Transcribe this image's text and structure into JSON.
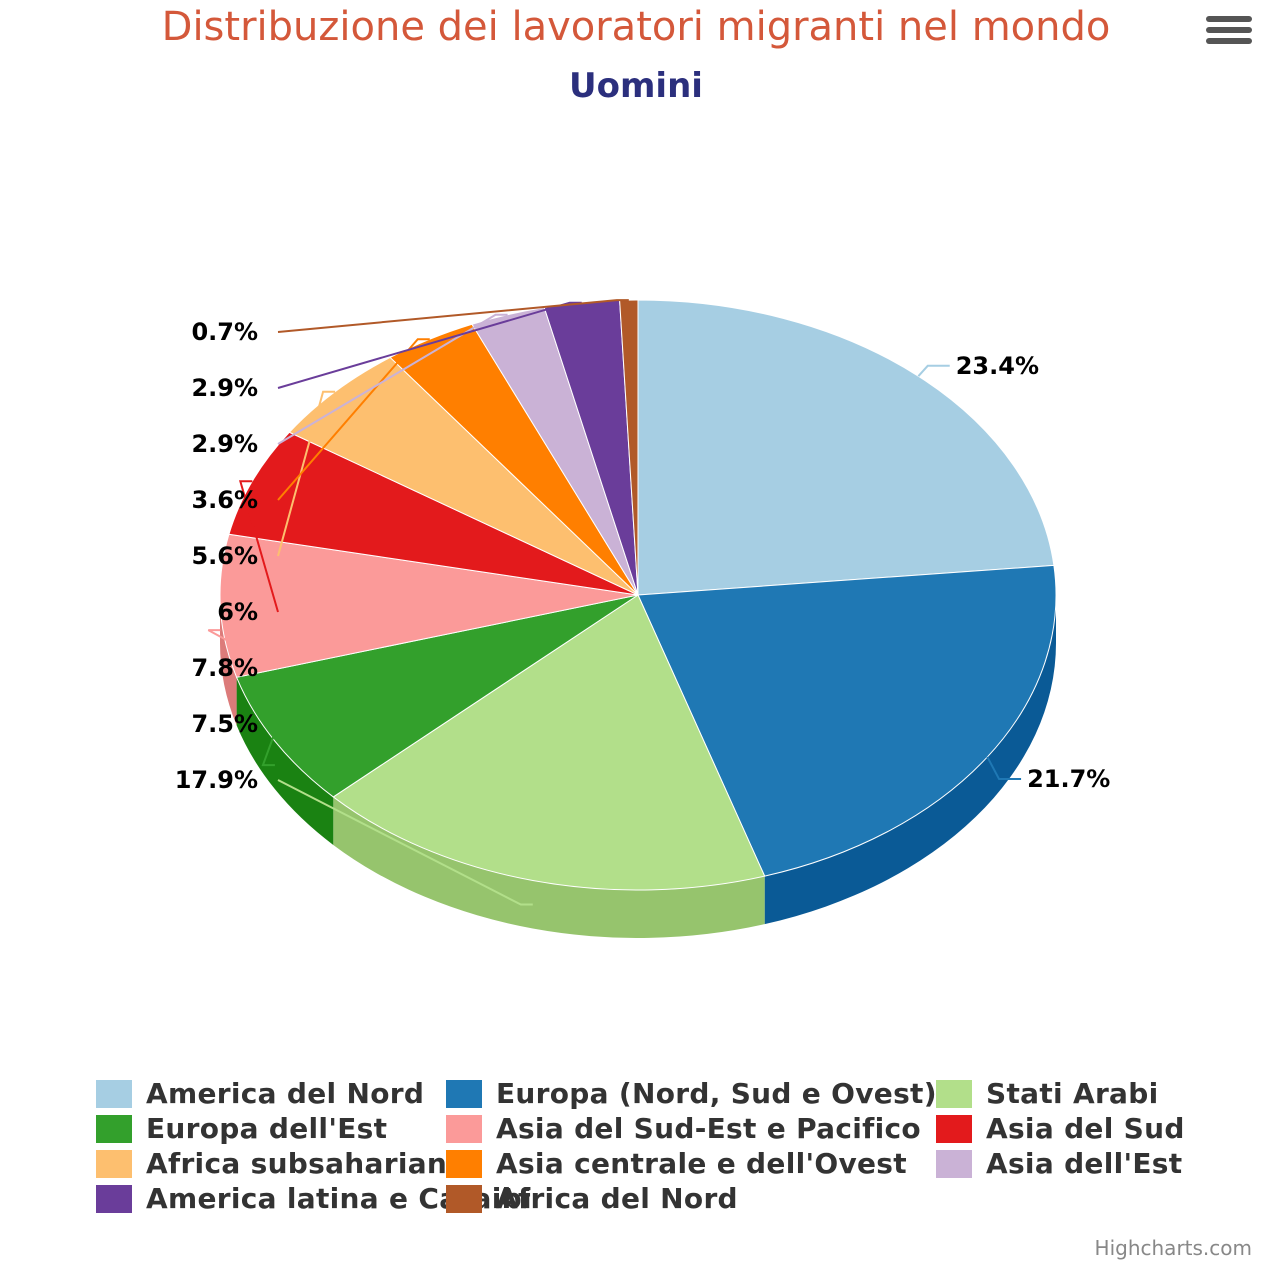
{
  "title": "Distribuzione dei lavoratori migranti nel mondo",
  "subtitle": "Uomini",
  "credits": "Highcharts.com",
  "menu": {
    "icon": "hamburger-menu-icon"
  },
  "chart_data": {
    "type": "pie",
    "title": "Distribuzione dei lavoratori migranti nel mondo",
    "subtitle": "Uomini",
    "legend_position": "bottom",
    "slices": [
      {
        "name": "America del Nord",
        "value": 23.4,
        "label": "23.4%",
        "color": "#a6cee3",
        "side": "#7fa9c2"
      },
      {
        "name": "Europa (Nord, Sud e Ovest)",
        "value": 21.7,
        "label": "21.7%",
        "color": "#1f78b4",
        "side": "#0a5a96"
      },
      {
        "name": "Stati Arabi",
        "value": 17.9,
        "label": "17.9%",
        "color": "#b2df8a",
        "side": "#96c46d"
      },
      {
        "name": "Europa dell'Est",
        "value": 7.5,
        "label": "7.5%",
        "color": "#33a02c",
        "side": "#1a8212"
      },
      {
        "name": "Asia del Sud-Est e Pacifico",
        "value": 7.8,
        "label": "7.8%",
        "color": "#fb9a99",
        "side": "#dc7b7a"
      },
      {
        "name": "Asia del Sud",
        "value": 6,
        "label": "6%",
        "color": "#e31a1c",
        "side": "#c00000"
      },
      {
        "name": "Africa subsahariana",
        "value": 5.6,
        "label": "5.6%",
        "color": "#fdbf6f",
        "side": "#dea050"
      },
      {
        "name": "Asia centrale e dell'Ovest",
        "value": 3.6,
        "label": "3.6%",
        "color": "#ff7f00",
        "side": "#e06000"
      },
      {
        "name": "Asia dell'Est",
        "value": 2.9,
        "label": "2.9%",
        "color": "#cab2d6",
        "side": "#ab93b7"
      },
      {
        "name": "America latina e Caraibi",
        "value": 2.9,
        "label": "2.9%",
        "color": "#6a3d9a",
        "side": "#4b1e7b"
      },
      {
        "name": "Africa del Nord",
        "value": 0.7,
        "label": "0.7%",
        "color": "#b15928",
        "side": "#923a09"
      }
    ]
  }
}
